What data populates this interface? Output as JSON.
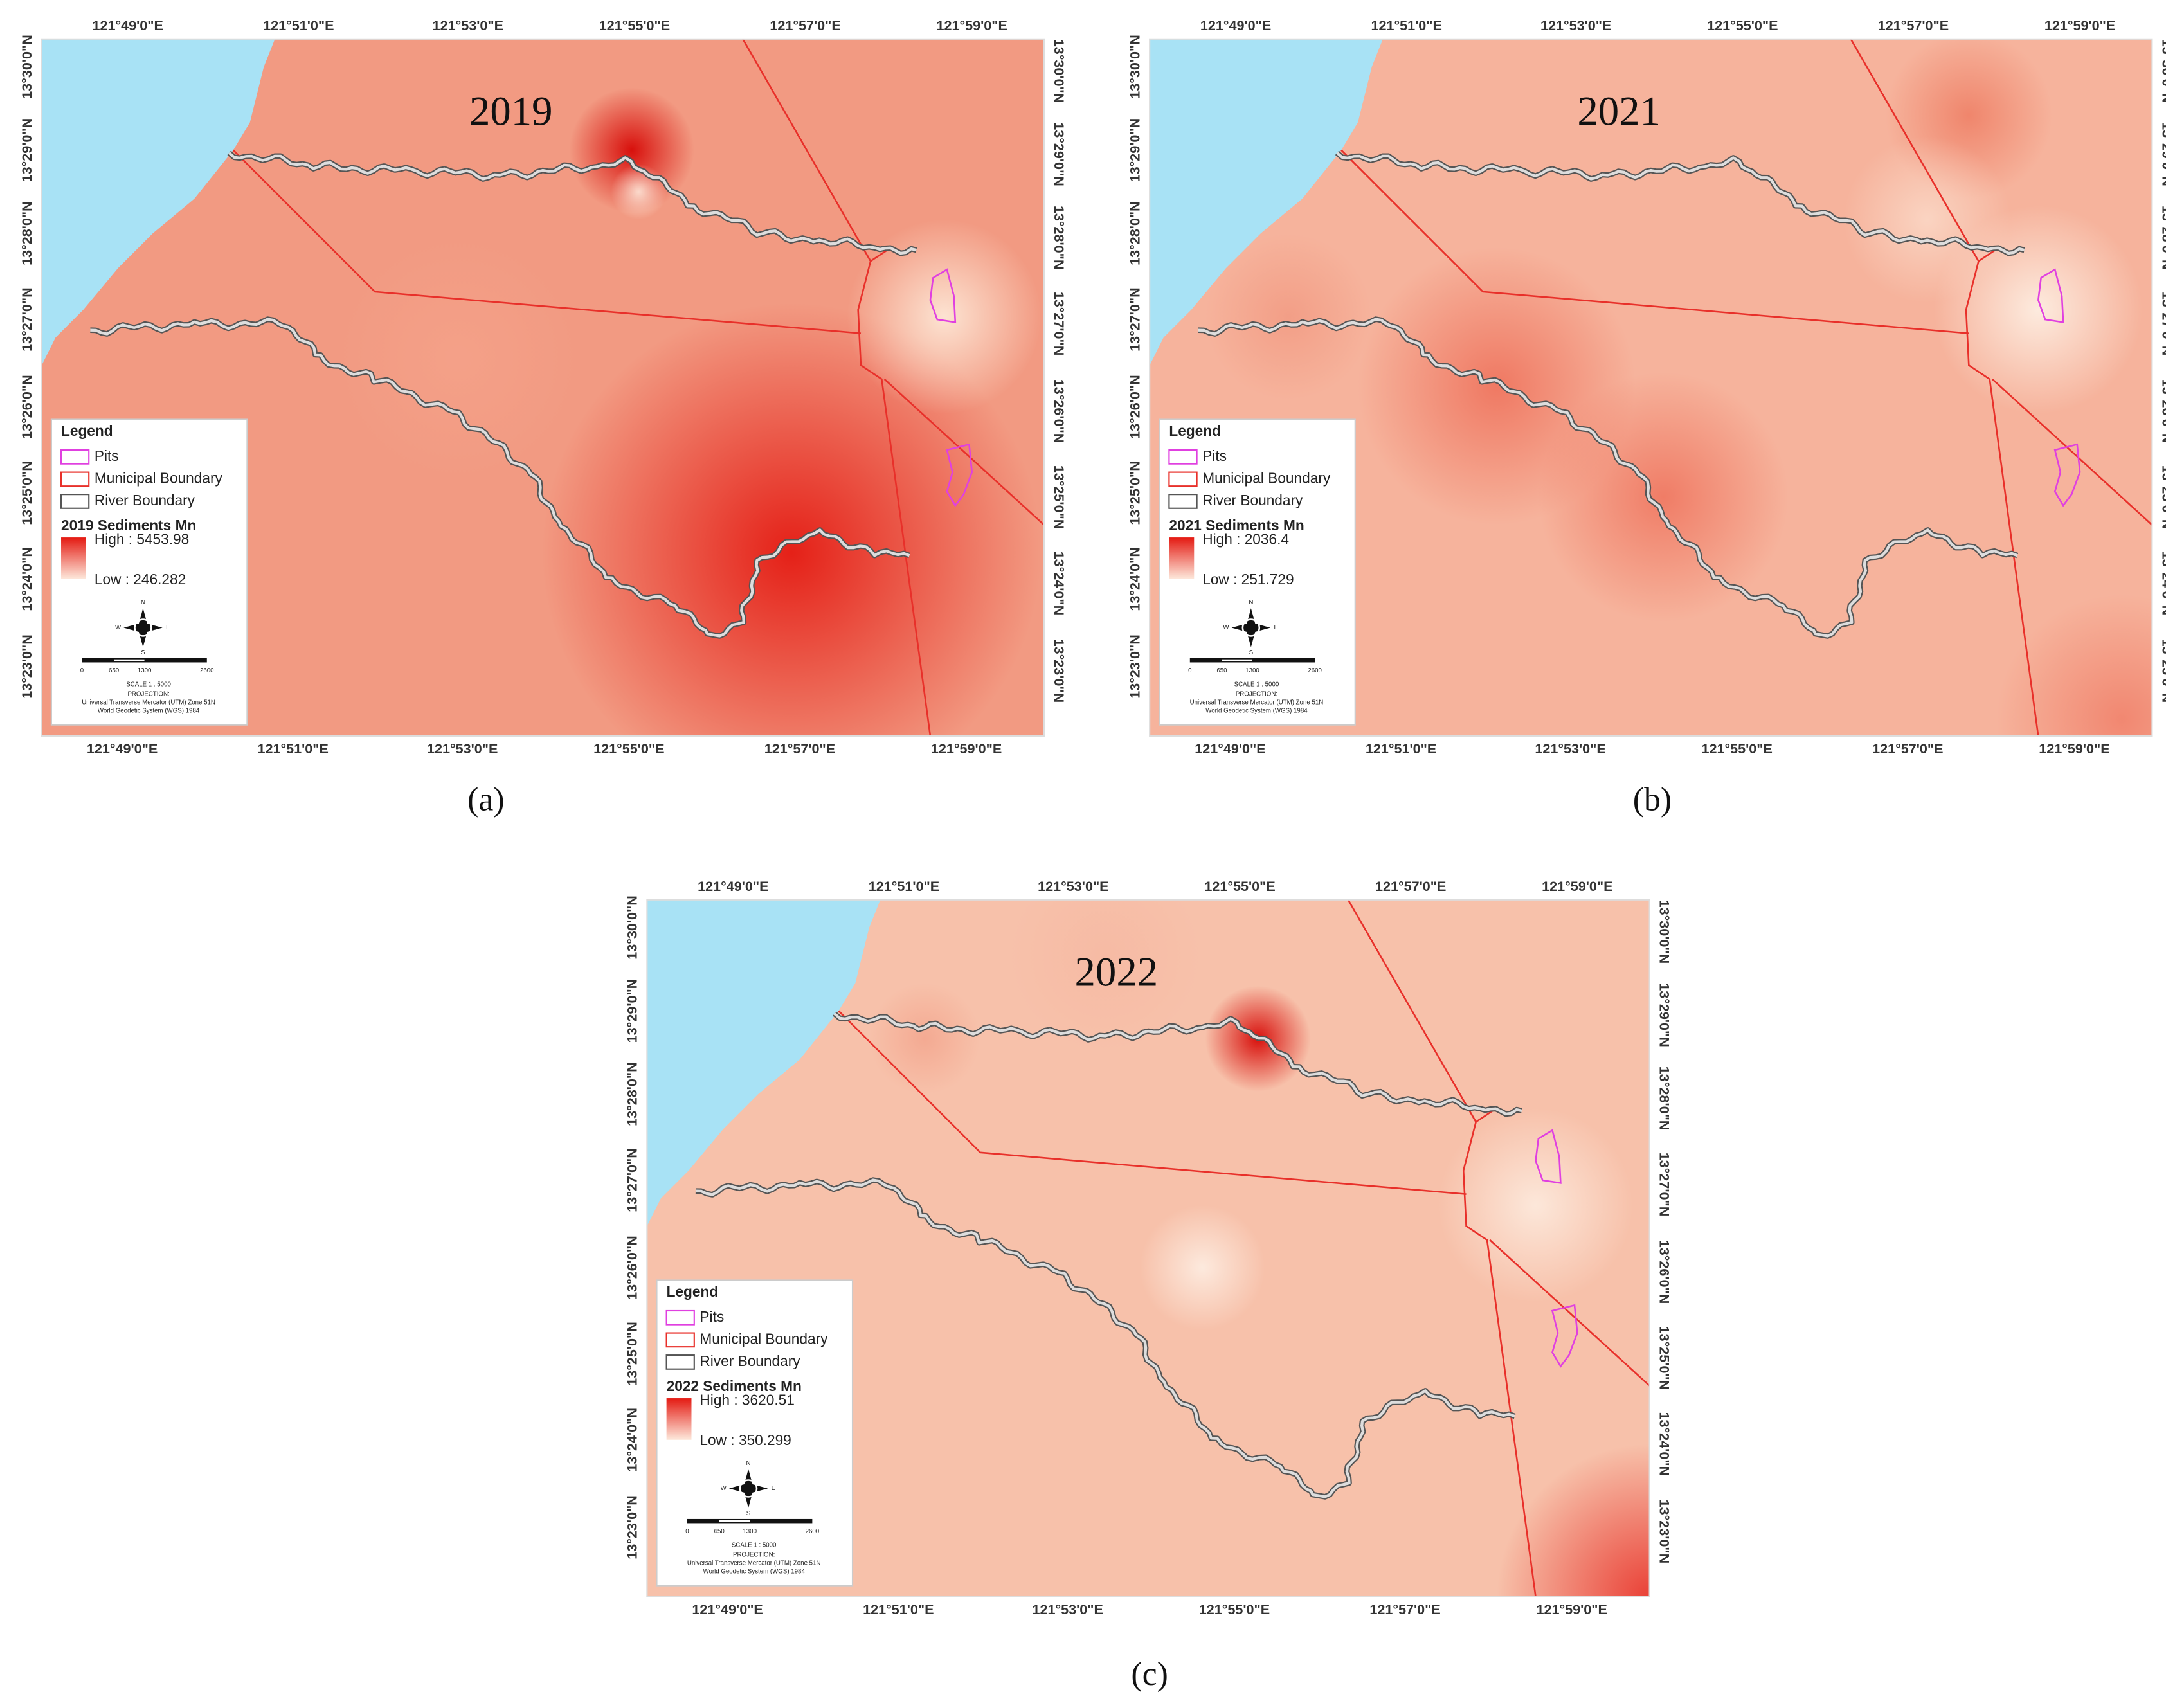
{
  "lon_labels": [
    "121°49'0\"E",
    "121°51'0\"E",
    "121°53'0\"E",
    "121°55'0\"E",
    "121°57'0\"E",
    "121°59'0\"E"
  ],
  "lat_labels": [
    "13°30'0\"N",
    "13°29'0\"N",
    "13°28'0\"N",
    "13°27'0\"N",
    "13°26'0\"N",
    "13°25'0\"N",
    "13°24'0\"N",
    "13°23'0\"N"
  ],
  "legend": {
    "title": "Legend",
    "items": [
      "Pits",
      "Municipal Boundary",
      "River Boundary"
    ],
    "compass": [
      "N",
      "E",
      "S",
      "W"
    ],
    "scale_ticks": [
      "0",
      "650",
      "1300",
      "2600"
    ],
    "scale_text": "SCALE 1 : 5000",
    "projection": [
      "PROJECTION:",
      "Universal Transverse Mercator (UTM) Zone 51N",
      "World Geodetic System (WGS) 1984"
    ]
  },
  "panels": [
    {
      "year": "2019",
      "legend_title": "2019 Sediments Mn",
      "high": "High : 5453.98",
      "low": "Low : 246.282",
      "caption": "(a)"
    },
    {
      "year": "2021",
      "legend_title": "2021 Sediments Mn",
      "high": "High : 2036.4",
      "low": "Low : 251.729",
      "caption": "(b)"
    },
    {
      "year": "2022",
      "legend_title": "2022 Sediments Mn",
      "high": "High : 3620.51",
      "low": "Low : 350.299",
      "caption": "(c)"
    }
  ]
}
